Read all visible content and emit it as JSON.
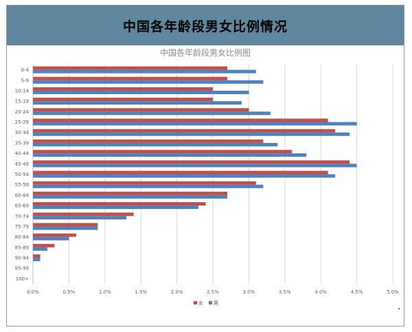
{
  "header": {
    "title": "中国各年龄段男女比例情况"
  },
  "chart_data": {
    "type": "bar",
    "orientation": "horizontal",
    "title": "中国各年龄段男女比例图",
    "categories": [
      "0-4",
      "5-9",
      "10-14",
      "15-19",
      "20-24",
      "25-29",
      "30-34",
      "35-39",
      "40-44",
      "45-49",
      "50-54",
      "55-59",
      "60-64",
      "65-69",
      "70-74",
      "75-79",
      "80-84",
      "85-89",
      "90-94",
      "95-99",
      "100+"
    ],
    "series": [
      {
        "name": "女",
        "color": "#c0504d",
        "values": [
          2.7,
          2.7,
          2.5,
          2.5,
          3.0,
          4.1,
          4.2,
          3.2,
          3.6,
          4.4,
          4.1,
          3.1,
          2.7,
          2.4,
          1.4,
          0.9,
          0.6,
          0.3,
          0.1,
          0.0,
          0.0
        ]
      },
      {
        "name": "男",
        "color": "#4f81bd",
        "values": [
          3.1,
          3.2,
          3.0,
          2.9,
          3.3,
          4.5,
          4.4,
          3.4,
          3.8,
          4.5,
          4.2,
          3.2,
          2.7,
          2.3,
          1.3,
          0.9,
          0.5,
          0.2,
          0.1,
          0.0,
          0.0
        ]
      }
    ],
    "x_ticks": [
      "0.0%",
      "0.5%",
      "1.0%",
      "1.5%",
      "2.0%",
      "2.5%",
      "3.0%",
      "3.5%",
      "4.0%",
      "4.5%",
      "5.0%"
    ],
    "xlim": [
      0,
      5
    ],
    "grid": true,
    "legend_position": "bottom"
  }
}
